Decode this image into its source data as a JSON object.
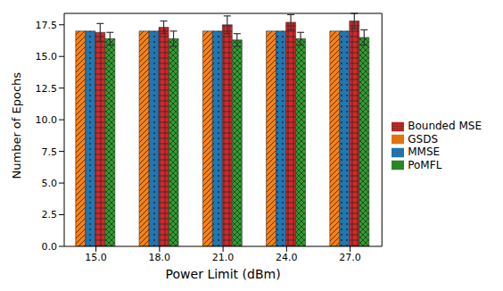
{
  "chart_data": {
    "type": "bar",
    "x_label": "Power Limit (dBm)",
    "y_label": "Number of Epochs",
    "categories": [
      "15.0",
      "18.0",
      "21.0",
      "24.0",
      "27.0"
    ],
    "series": [
      {
        "name": "GSDS",
        "color": "#ff7f0e",
        "values": [
          17,
          17,
          17,
          17,
          17
        ],
        "error": [
          0,
          0,
          0,
          0,
          0
        ]
      },
      {
        "name": "MMSE",
        "color": "#1f77b4",
        "values": [
          17,
          17,
          17,
          17,
          17
        ],
        "error": [
          0,
          0,
          0,
          0,
          0
        ]
      },
      {
        "name": "Bounded MSE",
        "color": "#d62728",
        "values": [
          16.9,
          17.3,
          17.5,
          17.7,
          17.8
        ],
        "error": [
          0.7,
          0.5,
          0.7,
          0.6,
          0.6
        ]
      },
      {
        "name": "PoMFL",
        "color": "#2ca02c",
        "values": [
          16.4,
          16.4,
          16.3,
          16.4,
          16.5
        ],
        "error": [
          0.5,
          0.6,
          0.5,
          0.5,
          0.6
        ]
      }
    ],
    "ylim": [
      0,
      18.4
    ],
    "yticks": [
      {
        "value": 0,
        "label": "0.0"
      },
      2.5,
      {
        "value": 5,
        "label": "5.0"
      },
      7.5,
      {
        "value": 10,
        "label": "10.0"
      },
      12.5,
      {
        "value": 15,
        "label": "15.0"
      },
      17.5
    ],
    "legend": "right"
  }
}
